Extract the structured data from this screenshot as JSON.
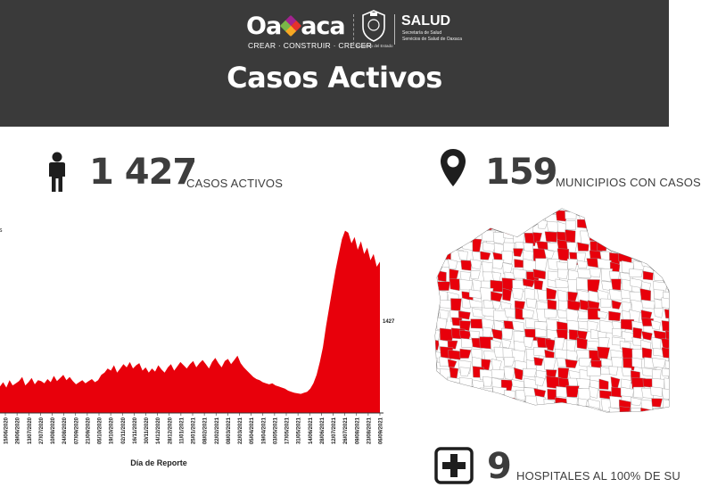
{
  "header": {
    "logo_text_left": "Oa",
    "logo_text_right": "aca",
    "logo_tagline": "CREAR · CONSTRUIR · CRECER",
    "seal_caption": "Gobierno del Estado",
    "salud_title": "SALUD",
    "salud_subtitle_1": "Secretaría de Salud",
    "salud_subtitle_2": "Servicios de Salud de Oaxaca",
    "title": "Casos Activos"
  },
  "stats": {
    "active_cases": {
      "value": "1 427",
      "label": "CASOS ACTIVOS",
      "icon": "person-icon"
    },
    "municipalities": {
      "value": "159",
      "label": "MUNICIPIOS CON CASOS",
      "icon": "map-pin-icon"
    },
    "hospitals": {
      "value": "9",
      "label": "HOSPITALES AL 100% DE SU",
      "icon": "hospital-cross-icon"
    }
  },
  "colors": {
    "header_bg": "#3a3a3a",
    "accent_red": "#e8000b",
    "text_dark": "#3d3d3d"
  },
  "chart_data": {
    "type": "area",
    "xlabel": "Día de Reporte",
    "ylabel": "s",
    "series_color": "#e8000b",
    "last_value_label": "1427",
    "ylim": [
      0,
      1750
    ],
    "tick_labels": [
      "15/06/2020",
      "29/06/2020",
      "13/07/2020",
      "27/07/2020",
      "10/08/2020",
      "24/08/2020",
      "07/09/2020",
      "21/09/2020",
      "05/10/2020",
      "19/10/2020",
      "02/11/2020",
      "16/11/2020",
      "30/11/2020",
      "14/12/2020",
      "28/12/2020",
      "11/01/2021",
      "25/01/2021",
      "08/02/2021",
      "22/02/2021",
      "08/03/2021",
      "22/03/2021",
      "05/04/2021",
      "19/04/2021",
      "03/05/2021",
      "17/05/2021",
      "31/05/2021",
      "14/06/2021",
      "28/06/2021",
      "12/07/2021",
      "26/07/2021",
      "09/08/2021",
      "23/08/2021",
      "06/09/2021"
    ],
    "values": [
      250,
      290,
      240,
      310,
      260,
      280,
      300,
      340,
      260,
      290,
      330,
      270,
      310,
      300,
      280,
      320,
      290,
      350,
      300,
      330,
      360,
      310,
      340,
      300,
      270,
      290,
      310,
      280,
      300,
      320,
      290,
      310,
      360,
      380,
      420,
      400,
      450,
      380,
      420,
      460,
      430,
      480,
      420,
      450,
      470,
      400,
      430,
      380,
      420,
      390,
      450,
      410,
      380,
      430,
      460,
      400,
      440,
      480,
      450,
      420,
      460,
      490,
      430,
      470,
      500,
      460,
      420,
      480,
      520,
      470,
      430,
      490,
      510,
      460,
      500,
      540,
      470,
      430,
      400,
      370,
      340,
      320,
      310,
      290,
      280,
      270,
      280,
      260,
      250,
      240,
      230,
      210,
      200,
      190,
      185,
      180,
      190,
      200,
      230,
      280,
      360,
      480,
      620,
      820,
      1000,
      1180,
      1350,
      1500,
      1640,
      1720,
      1700,
      1600,
      1660,
      1540,
      1620,
      1500,
      1560,
      1440,
      1500,
      1380,
      1427
    ],
    "annotation_region": "right-end"
  }
}
